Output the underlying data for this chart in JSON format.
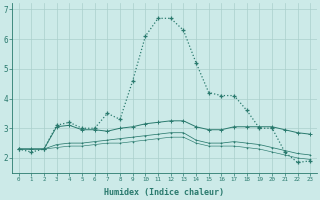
{
  "xlabel": "Humidex (Indice chaleur)",
  "x": [
    0,
    1,
    2,
    3,
    4,
    5,
    6,
    7,
    8,
    9,
    10,
    11,
    12,
    13,
    14,
    15,
    16,
    17,
    18,
    19,
    20,
    21,
    22,
    23
  ],
  "series1": [
    2.3,
    2.2,
    2.3,
    3.1,
    3.2,
    3.0,
    3.0,
    3.5,
    3.3,
    4.6,
    6.1,
    6.7,
    6.7,
    6.3,
    5.2,
    4.2,
    4.1,
    4.1,
    3.6,
    3.0,
    3.0,
    2.2,
    1.85,
    1.9
  ],
  "series2": [
    2.3,
    2.3,
    2.3,
    2.45,
    2.5,
    2.5,
    2.55,
    2.6,
    2.65,
    2.7,
    2.75,
    2.8,
    2.85,
    2.85,
    2.6,
    2.5,
    2.5,
    2.55,
    2.5,
    2.45,
    2.35,
    2.25,
    2.15,
    2.1
  ],
  "series3": [
    2.3,
    2.3,
    2.3,
    2.35,
    2.4,
    2.4,
    2.45,
    2.5,
    2.5,
    2.55,
    2.6,
    2.65,
    2.7,
    2.7,
    2.5,
    2.4,
    2.4,
    2.4,
    2.35,
    2.3,
    2.2,
    2.1,
    2.0,
    1.95
  ],
  "series4": [
    2.3,
    2.3,
    2.3,
    3.05,
    3.1,
    2.95,
    2.95,
    2.9,
    3.0,
    3.05,
    3.15,
    3.2,
    3.25,
    3.25,
    3.05,
    2.95,
    2.95,
    3.05,
    3.05,
    3.05,
    3.05,
    2.95,
    2.85,
    2.8
  ],
  "line_color": "#2a7a6e",
  "bg_color": "#cceae8",
  "grid_color": "#aacfcc",
  "ylim": [
    1.5,
    7.2
  ],
  "xlim": [
    -0.5,
    23.5
  ],
  "yticks": [
    2,
    3,
    4,
    5,
    6,
    7
  ]
}
